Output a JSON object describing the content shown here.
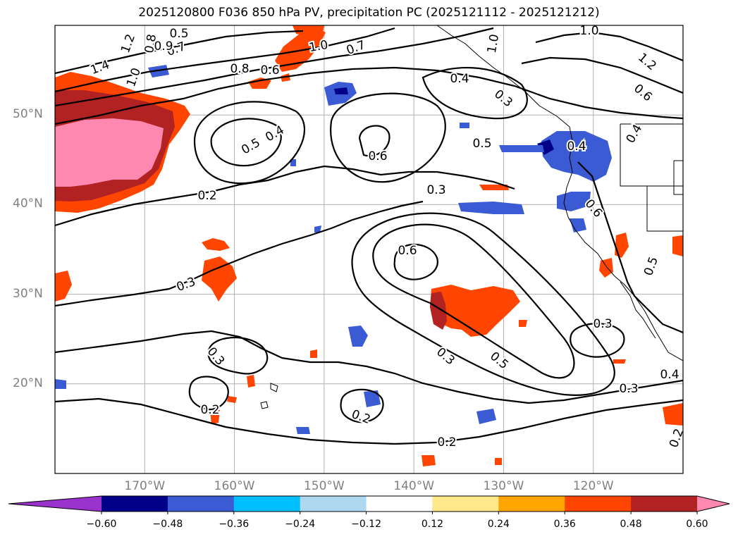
{
  "title": "2025120800 F036 850 hPa PV, precipitation PC (2025121112 - 2025121212)",
  "map": {
    "lat_ticks": [
      {
        "label": "50°N",
        "lat": 50
      },
      {
        "label": "40°N",
        "lat": 40
      },
      {
        "label": "30°N",
        "lat": 30
      },
      {
        "label": "20°N",
        "lat": 20
      }
    ],
    "lon_ticks": [
      {
        "label": "170°W",
        "lon": -170
      },
      {
        "label": "160°W",
        "lon": -160
      },
      {
        "label": "150°W",
        "lon": -150
      },
      {
        "label": "140°W",
        "lon": -140
      },
      {
        "label": "130°W",
        "lon": -130
      },
      {
        "label": "120°W",
        "lon": -120
      }
    ],
    "lon_range": [
      -180,
      -110
    ],
    "lat_range": [
      10,
      60
    ],
    "gridlines": true,
    "contour_labels": [
      "1.4",
      "1.2",
      "1.0",
      "0.8",
      "0.5",
      "0.7",
      "0.9",
      "1.0",
      "0.8",
      "0.6",
      "0.7",
      "1.0",
      "0.4",
      "0.3",
      "1.2",
      "0.6",
      "0.4",
      "0.5",
      "0.5",
      "0.4",
      "0.6",
      "0.2",
      "0.3",
      "0.6",
      "0.3",
      "0.6",
      "0.3",
      "0.4",
      "0.5",
      "0.3",
      "0.3",
      "0.2",
      "0.2",
      "0.2",
      "0.3",
      "0.4",
      "0.2",
      "0.5",
      "1.0"
    ]
  },
  "colorbar": {
    "colors": [
      "#9932cc",
      "#00008b",
      "#3a5bd3",
      "#00bfff",
      "#add8f0",
      "#ffffff",
      "#ffe88a",
      "#ffa500",
      "#ff4500",
      "#b22222",
      "#ff88b0"
    ],
    "tick_labels": [
      "−0.60",
      "−0.48",
      "−0.36",
      "−0.24",
      "−0.12",
      "0.12",
      "0.24",
      "0.36",
      "0.48",
      "0.60"
    ]
  }
}
